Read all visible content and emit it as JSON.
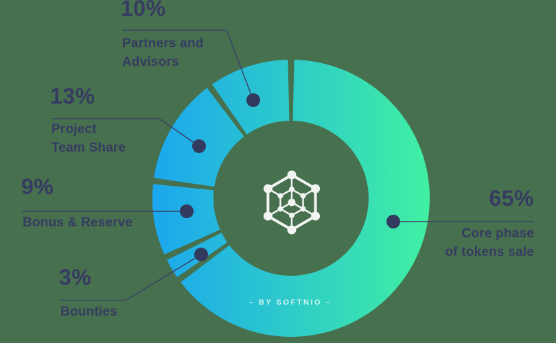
{
  "colors": {
    "background": "#47704E",
    "text": "#363B62",
    "line": "#3A4268",
    "dot": "#333A5F",
    "gradient_start": "#1BA7EF",
    "gradient_end": "#41F0A2",
    "icon": "#FFFFFF",
    "watermark": "rgba(255,255,255,0.78)"
  },
  "watermark_text": "– BY SOFTNIO –",
  "chart_data": {
    "type": "pie",
    "subtype": "donut",
    "direction": "clockwise",
    "start_angle_deg": 0,
    "gap_deg": 1.3,
    "segments": [
      {
        "label": "Core phase of tokens sale",
        "value": 65
      },
      {
        "label": "Bounties",
        "value": 3
      },
      {
        "label": "Bonus & Reserve",
        "value": 9
      },
      {
        "label": "Project Team Share",
        "value": 13
      },
      {
        "label": "Partners and Advisors",
        "value": 10
      }
    ]
  },
  "labels": {
    "g10": {
      "pct": "10%",
      "lines": [
        "Partners and",
        "Advisors"
      ]
    },
    "g13": {
      "pct": "13%",
      "lines": [
        "Project",
        "Team Share"
      ]
    },
    "g9": {
      "pct": "9%",
      "lines": [
        "Bonus & Reserve"
      ]
    },
    "g3": {
      "pct": "3%",
      "lines": [
        "Bounties"
      ]
    },
    "g65": {
      "pct": "65%",
      "lines": [
        "Core phase",
        "of tokens sale"
      ]
    }
  }
}
